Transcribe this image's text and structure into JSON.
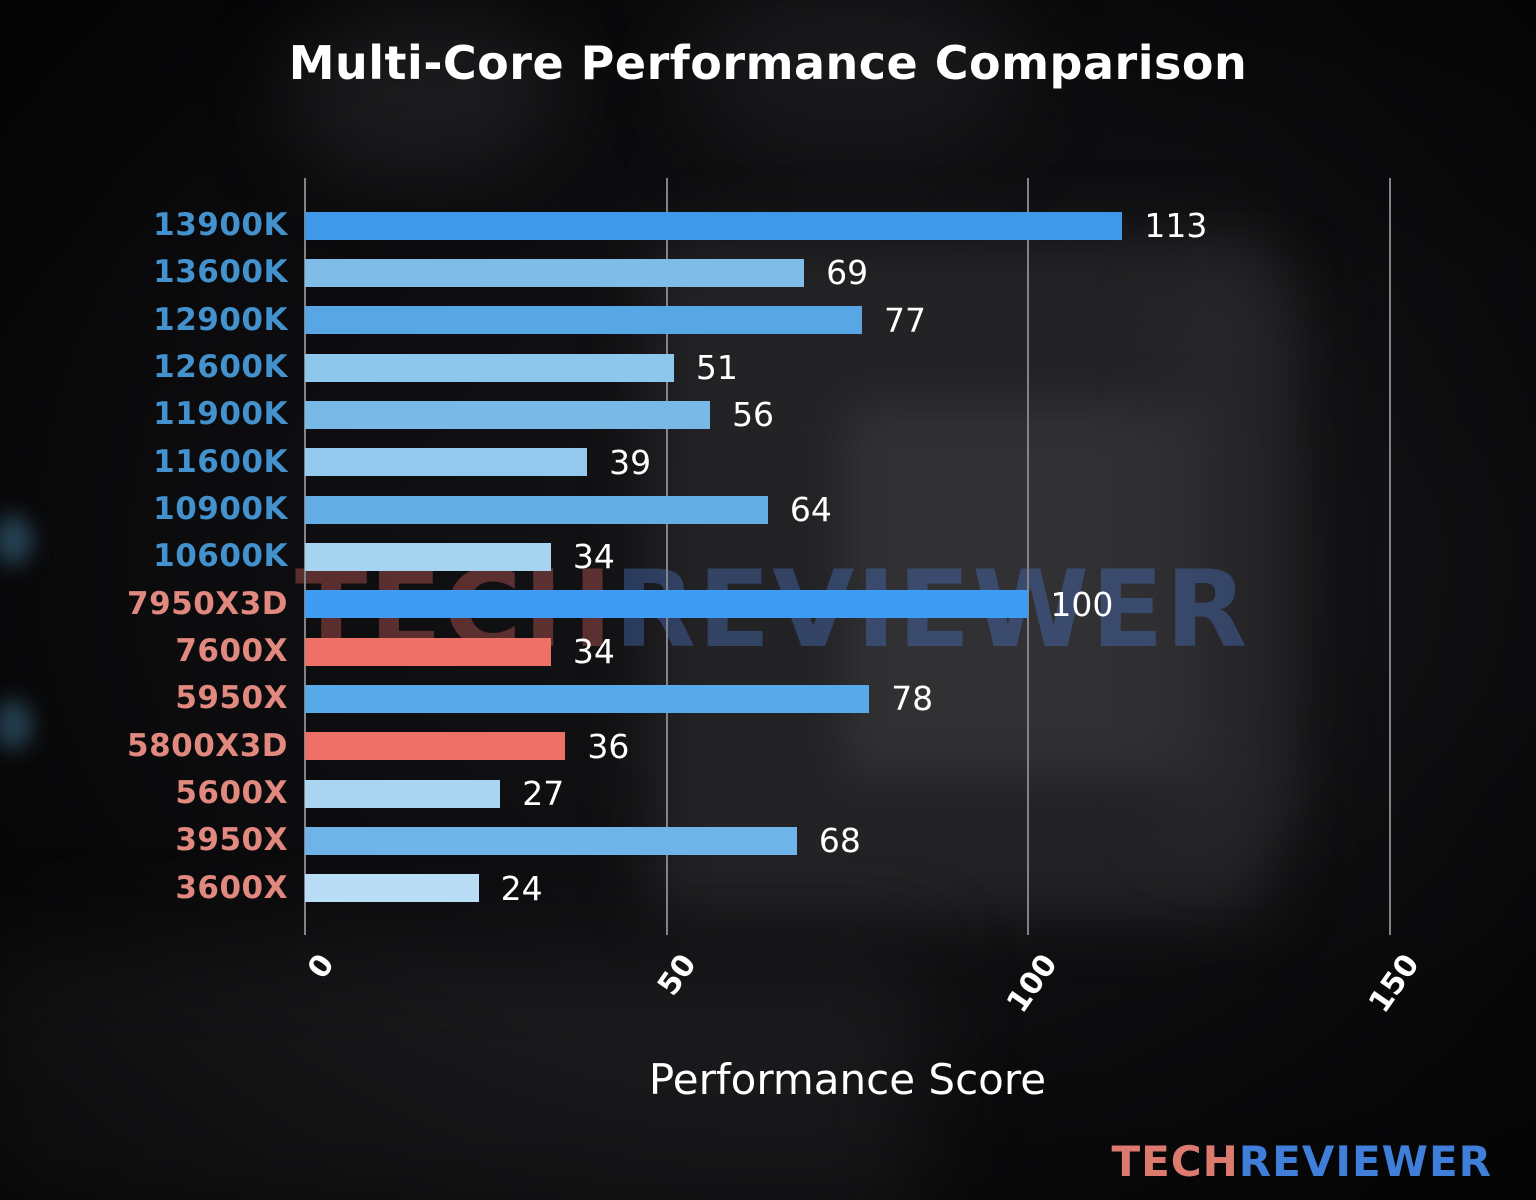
{
  "title": "Multi-Core Performance Comparison",
  "watermark": {
    "part1": "TECH",
    "part2": "REVIEWER"
  },
  "brand": {
    "part1": "TECH",
    "part2": "REVIEWER"
  },
  "colors": {
    "value_text": "#ffffff",
    "grid": "#828287",
    "intel_label": "#4392cd",
    "amd_label": "#e1887f",
    "watermark_tech": "rgba(205,95,90,0.40)",
    "watermark_reviewer": "rgba(75,115,195,0.40)",
    "brand_tech": "#dd7a70",
    "brand_reviewer": "#3f7fd9"
  },
  "chart_data": {
    "type": "bar",
    "orientation": "horizontal",
    "title": "Multi-Core Performance Comparison",
    "xlabel": "Performance Score",
    "categories": [
      "13900K",
      "13600K",
      "12900K",
      "12600K",
      "11900K",
      "11600K",
      "10900K",
      "10600K",
      "7950X3D",
      "7600X",
      "5950X",
      "5800X3D",
      "5600X",
      "3950X",
      "3600X"
    ],
    "values": [
      113,
      69,
      77,
      51,
      56,
      39,
      64,
      34,
      100,
      34,
      78,
      36,
      27,
      68,
      24
    ],
    "bar_colors": [
      "#3f99e8",
      "#7fbce7",
      "#58a7e4",
      "#8ec7ec",
      "#79b9e6",
      "#93c9ed",
      "#65aee5",
      "#a5d3f0",
      "#3e9cf5",
      "#ee7168",
      "#57a9e8",
      "#ee7168",
      "#a9d5f1",
      "#6fb4e8",
      "#b9ddf4"
    ],
    "label_colors": [
      "#4392cd",
      "#4392cd",
      "#4392cd",
      "#4392cd",
      "#4392cd",
      "#4392cd",
      "#4392cd",
      "#4392cd",
      "#e1887f",
      "#e1887f",
      "#e1887f",
      "#e1887f",
      "#e1887f",
      "#e1887f",
      "#e1887f"
    ],
    "xticks": [
      0,
      50,
      100,
      150
    ],
    "xlim": [
      0,
      158
    ],
    "grid": true,
    "legend_position": "none"
  }
}
